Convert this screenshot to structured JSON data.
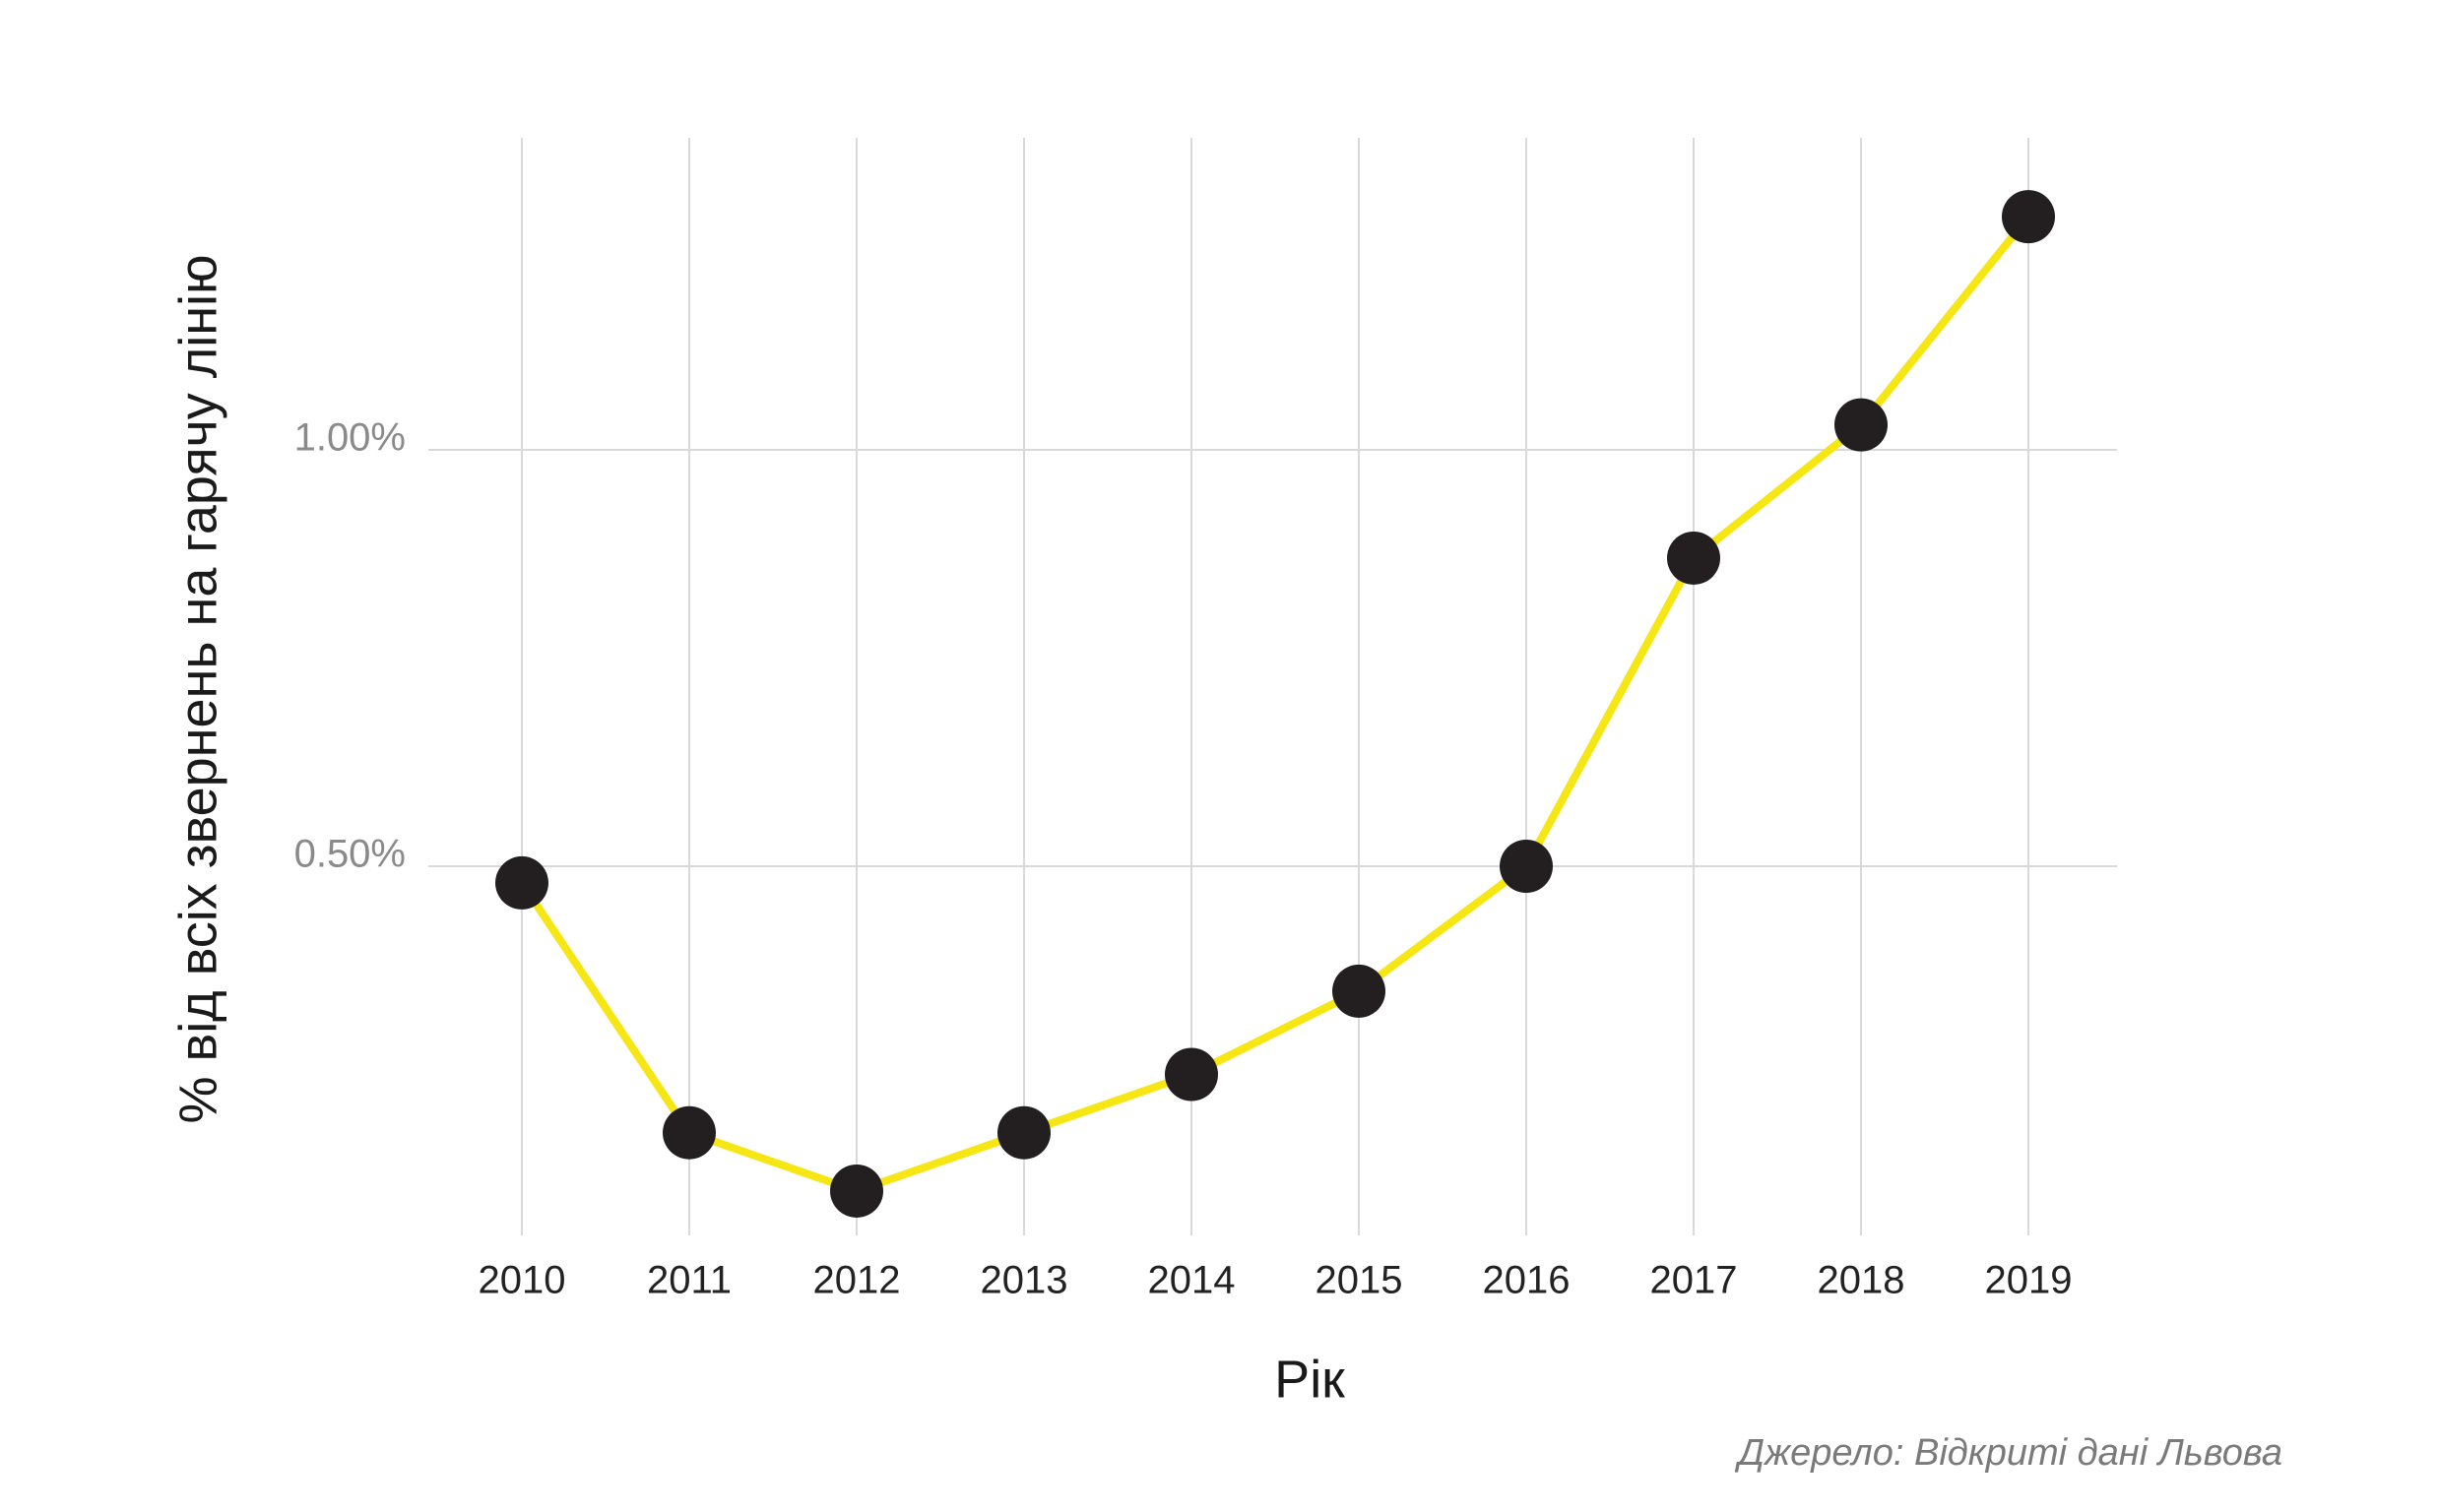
{
  "chart_data": {
    "type": "line",
    "categories": [
      "2010",
      "2011",
      "2012",
      "2013",
      "2014",
      "2015",
      "2016",
      "2017",
      "2018",
      "2019"
    ],
    "series": [
      {
        "values": [
          0.48,
          0.18,
          0.11,
          0.18,
          0.25,
          0.35,
          0.5,
          0.87,
          1.03,
          1.28
        ],
        "color": "#f5e614"
      }
    ],
    "y_ticks": [
      0.5,
      1.0
    ],
    "y_tick_labels": [
      "0.50%",
      "1.00%"
    ],
    "ylim": [
      0.06,
      1.34
    ],
    "xlabel": "Рік",
    "ylabel": "% від всіх звернень на гарячу лінію",
    "grid": true,
    "marker_color": "#231f20",
    "source": "Джерело: Відкриті дані Львова"
  }
}
